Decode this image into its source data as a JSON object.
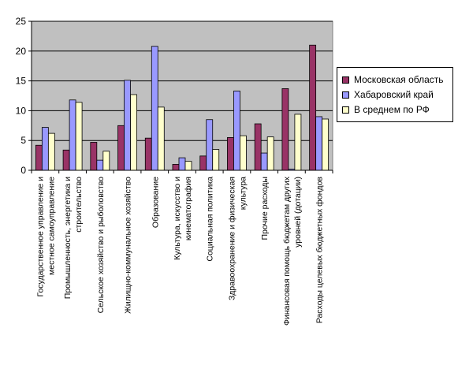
{
  "chart_data": {
    "type": "bar",
    "title": "",
    "xlabel": "",
    "ylabel": "",
    "ylim": [
      0,
      25
    ],
    "yticks": [
      0,
      5,
      10,
      15,
      20,
      25
    ],
    "grid": true,
    "legend_position": "right",
    "plot_background": "#c0c0c0",
    "categories": [
      "Государственное управление и местное самоуправление",
      "Промышленность, энергетика и строительство",
      "Сельское хозяйство и рыболовство",
      "Жилищно-коммунальное хозяйство",
      "Образование",
      "Культура, искусство и кинематография",
      "Социальная политика",
      "Здравоохранение и физическая культура",
      "Прочие расходы",
      "Финансовая помощь бюджетам других уровней (дотации)",
      "Расходы целевых бюджетных фондов"
    ],
    "category_label_lines": [
      [
        "Государственное управление и",
        "местное самоуправление"
      ],
      [
        "Промышленность, энергетика и",
        "строительство"
      ],
      [
        "Сельское хозяйство и рыболовство"
      ],
      [
        "Жилищно-коммунальное хозяйство"
      ],
      [
        "Образование"
      ],
      [
        "Культура, искусство и",
        "кинематография"
      ],
      [
        "Социальная политика"
      ],
      [
        "Здравоохранение и физическая",
        "культура"
      ],
      [
        "Прочие расходы"
      ],
      [
        "Финансовая помощь бюджетам других",
        "уровней (дотации)"
      ],
      [
        "Расходы целевых бюджетных фондов"
      ]
    ],
    "series": [
      {
        "name": "Московская область",
        "color": "#993366",
        "values": [
          4.2,
          3.4,
          4.7,
          7.5,
          5.4,
          1.0,
          2.4,
          5.5,
          7.8,
          13.7,
          21.0
        ]
      },
      {
        "name": "Хабаровский край",
        "color": "#9999ff",
        "values": [
          7.2,
          11.8,
          1.7,
          15.1,
          20.8,
          2.1,
          8.5,
          13.3,
          2.9,
          0.2,
          9.0
        ]
      },
      {
        "name": "В среднем по РФ",
        "color": "#ffffcc",
        "values": [
          6.2,
          11.4,
          3.2,
          12.7,
          10.6,
          1.5,
          3.5,
          5.8,
          5.6,
          9.4,
          8.6
        ]
      }
    ]
  }
}
